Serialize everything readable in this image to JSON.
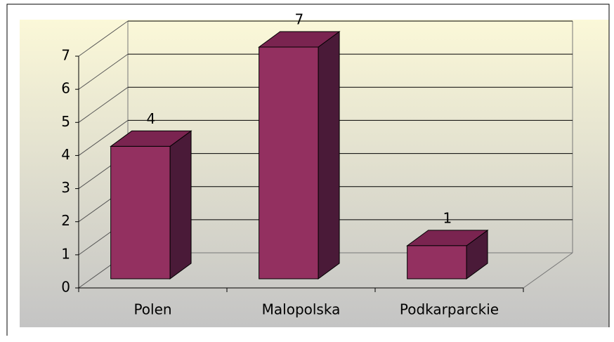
{
  "chart_data": {
    "type": "bar",
    "categories": [
      "Polen",
      "Malopolska",
      "Podkarparckie"
    ],
    "values": [
      4,
      7,
      1
    ],
    "colors": {
      "front": "#933060",
      "side": "#4a1a38",
      "top": "#7a2450"
    },
    "ylim": [
      0,
      7
    ],
    "yticks": [
      0,
      1,
      2,
      3,
      4,
      5,
      6,
      7
    ],
    "grid": true
  }
}
